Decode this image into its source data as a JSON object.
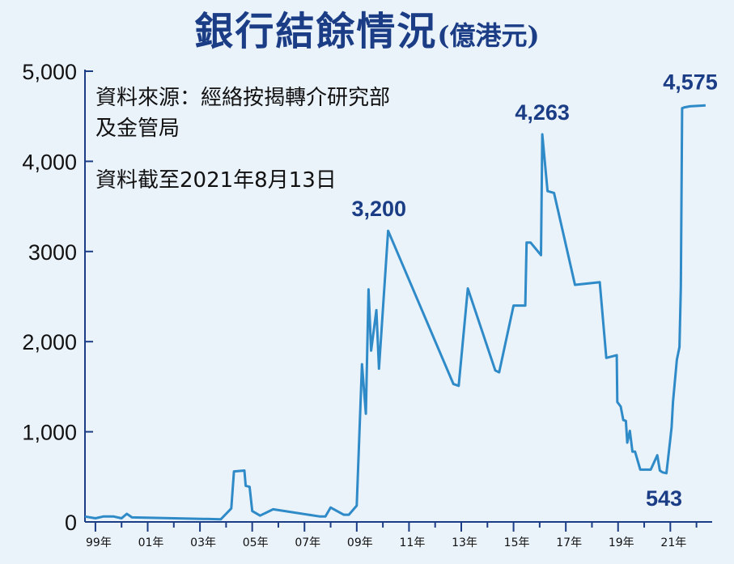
{
  "title": "銀行結餘情況",
  "unit": "(億港元)",
  "source_line1": "資料來源：經絡按揭轉介研究部",
  "source_line2": "及金管局",
  "as_of": "資料截至2021年8月13日",
  "chart_data": {
    "type": "line",
    "title": "銀行結餘情況",
    "ylabel": "",
    "xlabel": "",
    "ylim": [
      0,
      5000
    ],
    "yticks": [
      "5,000",
      "4,000",
      "3000",
      "2,000",
      "1,000",
      "0"
    ],
    "xticks": [
      "99年",
      "01年",
      "03年",
      "05年",
      "07年",
      "09年",
      "11年",
      "13年",
      "15年",
      "17年",
      "19年",
      "21年"
    ],
    "x": [
      1998.6,
      1999.0,
      1999.3,
      1999.7,
      2000.0,
      2000.2,
      2000.4,
      2003.8,
      2004.2,
      2004.3,
      2004.7,
      2004.75,
      2004.9,
      2005.0,
      2005.3,
      2005.8,
      2007.6,
      2007.8,
      2008.0,
      2008.5,
      2008.7,
      2009.0,
      2009.2,
      2009.35,
      2009.45,
      2009.55,
      2009.75,
      2009.85,
      2010.2,
      2012.7,
      2012.9,
      2013.25,
      2014.3,
      2014.45,
      2015.0,
      2015.15,
      2015.45,
      2015.5,
      2015.65,
      2016.05,
      2016.1,
      2016.3,
      2016.55,
      2017.35,
      2018.3,
      2018.55,
      2018.95,
      2018.97,
      2019.1,
      2019.2,
      2019.3,
      2019.35,
      2019.45,
      2019.55,
      2019.65,
      2019.85,
      2020.25,
      2020.5,
      2020.6,
      2020.7,
      2020.85,
      2021.0,
      2021.05,
      2021.1,
      2021.25,
      2021.35,
      2021.4,
      2021.45,
      2021.55,
      2021.75,
      2022.35
    ],
    "values": [
      60,
      40,
      60,
      60,
      40,
      90,
      50,
      30,
      150,
      560,
      570,
      400,
      390,
      120,
      70,
      140,
      60,
      60,
      160,
      80,
      80,
      180,
      1750,
      1200,
      2580,
      1900,
      2350,
      1700,
      3230,
      1530,
      1510,
      2590,
      1680,
      1660,
      2400,
      2400,
      2400,
      3100,
      3100,
      2960,
      4300,
      3670,
      3650,
      2630,
      2660,
      1820,
      1850,
      1330,
      1280,
      1130,
      1120,
      880,
      1010,
      780,
      780,
      580,
      580,
      740,
      570,
      550,
      540,
      920,
      1050,
      1330,
      1800,
      1940,
      2600,
      4590,
      4600,
      4610,
      4620
    ],
    "data_labels": [
      {
        "text": "3,200",
        "x": 2009.85,
        "y": 3230
      },
      {
        "text": "4,263",
        "x": 2016.1,
        "y": 4300
      },
      {
        "text": "543",
        "x": 2020.85,
        "y": 540
      },
      {
        "text": "4,575",
        "x": 2022.1,
        "y": 4620
      }
    ],
    "line_color": "#2f8ac8",
    "axis_color": "#1b3d86",
    "label_color": "#1b3d86"
  }
}
